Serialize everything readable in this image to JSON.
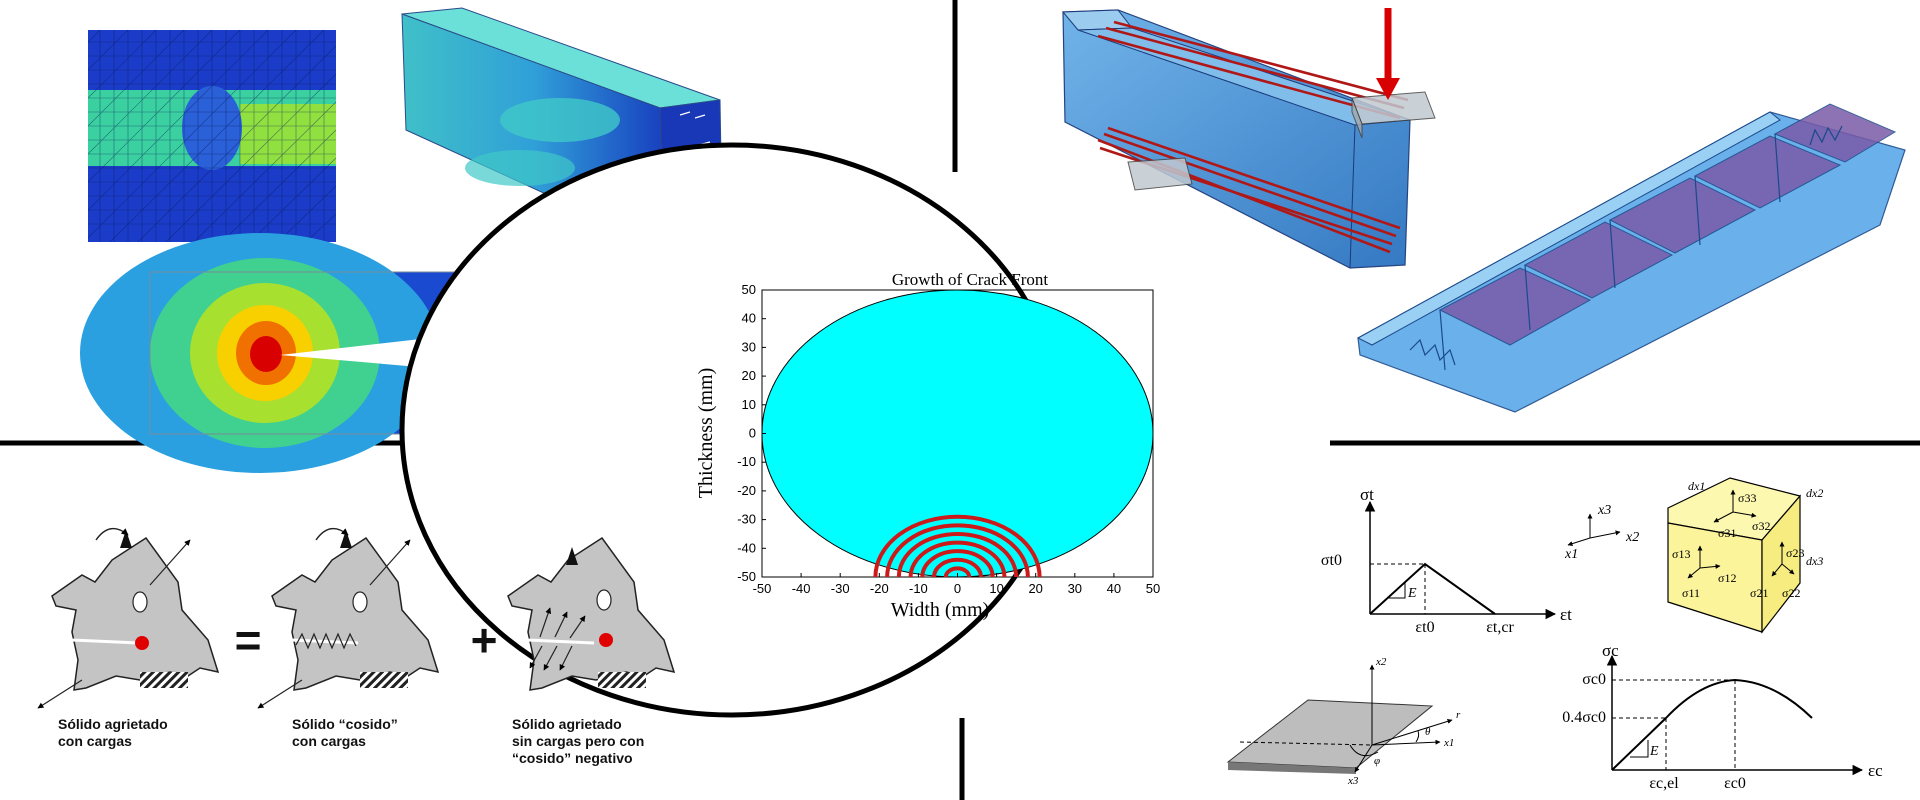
{
  "center_chart": {
    "title": "Growth of Crack Front",
    "xlabel": "Width (mm)",
    "ylabel": "Thickness (mm)",
    "xticks": [
      "-50",
      "-40",
      "-30",
      "-20",
      "-10",
      "0",
      "10",
      "20",
      "30",
      "40",
      "50"
    ],
    "yticks": [
      "50",
      "40",
      "30",
      "20",
      "10",
      "0",
      "-10",
      "-20",
      "-30",
      "-40",
      "-50"
    ],
    "colors": {
      "fill": "#00ffff",
      "crack": "#cc1a1a"
    }
  },
  "chart_data": {
    "type": "line",
    "title": "Growth of Crack Front",
    "xlabel": "Width (mm)",
    "ylabel": "Thickness (mm)",
    "xlim": [
      -50,
      50
    ],
    "ylim": [
      -50,
      50
    ],
    "grid": false,
    "outer_boundary": {
      "center": [
        0,
        0
      ],
      "radius": 50
    },
    "crack_fronts": {
      "center": [
        0,
        -50
      ],
      "radii_mm": [
        3,
        6,
        9,
        12,
        15,
        18,
        21
      ]
    }
  },
  "bottom_left": {
    "caption1_line1": "Sólido agrietado",
    "caption1_line2": "con cargas",
    "equals": "=",
    "caption2_line1": "Sólido “cosido”",
    "caption2_line2": "con cargas",
    "plus": "+",
    "caption3_line1": "Sólido agrietado",
    "caption3_line2": "sin cargas pero con",
    "caption3_line3": "“cosido” negativo"
  },
  "bottom_right": {
    "tension": {
      "y_axis": "σt",
      "x_axis": "εt",
      "peak": "σt0",
      "e0": "εt0",
      "ecr": "εt,cr",
      "modulus": "E"
    },
    "axes3d": {
      "x3": "x3",
      "x2": "x2",
      "x1": "x1"
    },
    "cube": {
      "dx1": "dx1",
      "dx2": "dx2",
      "dx3": "dx3",
      "stresses": [
        "σ33",
        "σ31",
        "σ32",
        "σ13",
        "σ12",
        "σ23",
        "σ11",
        "σ21",
        "σ22"
      ],
      "color": "#fbf49a"
    },
    "plane": {
      "x2": "x2",
      "r": "r",
      "theta": "θ",
      "x1": "x1",
      "phi": "φ",
      "x3": "x3"
    },
    "compression": {
      "y_axis": "σc",
      "x_axis": "εc",
      "peak": "σc0",
      "mid": "0.4σc0",
      "el": "εc,el",
      "e0": "εc0",
      "modulus": "E"
    }
  }
}
